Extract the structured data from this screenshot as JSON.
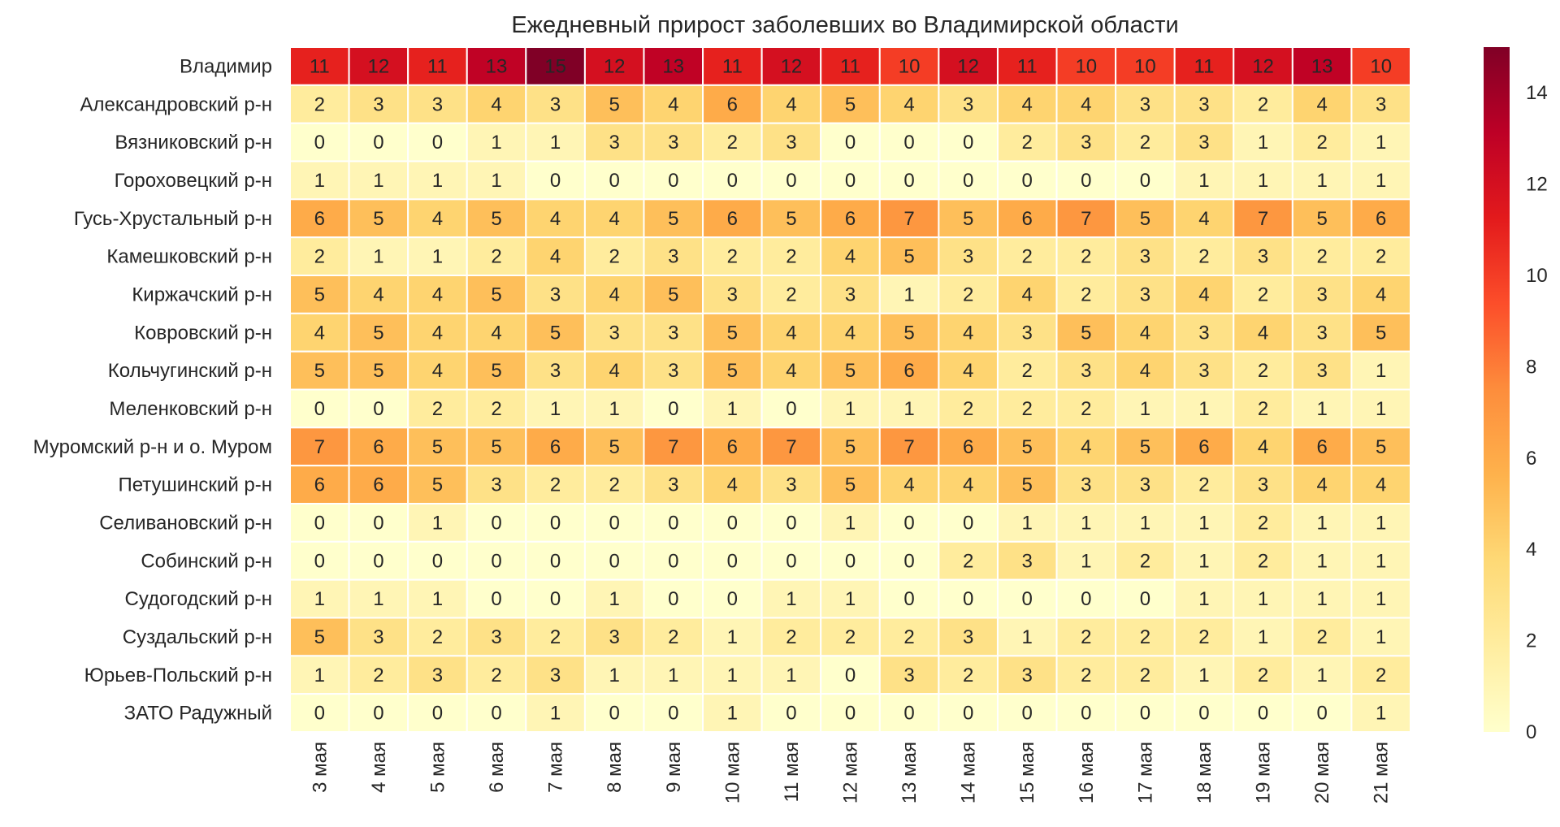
{
  "chart_data": {
    "type": "heatmap",
    "title": "Ежедневный прирост заболевших во Владимирской области",
    "columns": [
      "3 мая",
      "4 мая",
      "5 мая",
      "6 мая",
      "7 мая",
      "8 мая",
      "9 мая",
      "10 мая",
      "11 мая",
      "12 мая",
      "13 мая",
      "14 мая",
      "15 мая",
      "16 мая",
      "17 мая",
      "18 мая",
      "19 мая",
      "20 мая",
      "21 мая"
    ],
    "rows": [
      "Владимир",
      "Александровский р-н",
      "Вязниковский р-н",
      "Гороховецкий р-н",
      "Гусь-Хрустальный р-н",
      "Камешковский р-н",
      "Киржачский р-н",
      "Ковровский р-н",
      "Кольчугинский р-н",
      "Меленковский р-н",
      "Муромский р-н и о. Муром",
      "Петушинский р-н",
      "Селивановский р-н",
      "Собинский р-н",
      "Судогодский р-н",
      "Суздальский р-н",
      "Юрьев-Польский р-н",
      "ЗАТО Радужный"
    ],
    "values": [
      [
        11,
        12,
        11,
        13,
        15,
        12,
        13,
        11,
        12,
        11,
        10,
        12,
        11,
        10,
        10,
        11,
        12,
        13,
        10
      ],
      [
        2,
        3,
        3,
        4,
        3,
        5,
        4,
        6,
        4,
        5,
        4,
        3,
        4,
        4,
        3,
        3,
        2,
        4,
        3
      ],
      [
        0,
        0,
        0,
        1,
        1,
        3,
        3,
        2,
        3,
        0,
        0,
        0,
        2,
        3,
        2,
        3,
        1,
        2,
        1
      ],
      [
        1,
        1,
        1,
        1,
        0,
        0,
        0,
        0,
        0,
        0,
        0,
        0,
        0,
        0,
        0,
        1,
        1,
        1,
        1
      ],
      [
        6,
        5,
        4,
        5,
        4,
        4,
        5,
        6,
        5,
        6,
        7,
        5,
        6,
        7,
        5,
        4,
        7,
        5,
        6
      ],
      [
        2,
        1,
        1,
        2,
        4,
        2,
        3,
        2,
        2,
        4,
        5,
        3,
        2,
        2,
        3,
        2,
        3,
        2,
        2
      ],
      [
        5,
        4,
        4,
        5,
        3,
        4,
        5,
        3,
        2,
        3,
        1,
        2,
        4,
        2,
        3,
        4,
        2,
        3,
        4
      ],
      [
        4,
        5,
        4,
        4,
        5,
        3,
        3,
        5,
        4,
        4,
        5,
        4,
        3,
        5,
        4,
        3,
        4,
        3,
        5
      ],
      [
        5,
        5,
        4,
        5,
        3,
        4,
        3,
        5,
        4,
        5,
        6,
        4,
        2,
        3,
        4,
        3,
        2,
        3,
        1
      ],
      [
        0,
        0,
        2,
        2,
        1,
        1,
        0,
        1,
        0,
        1,
        1,
        2,
        2,
        2,
        1,
        1,
        2,
        1,
        1
      ],
      [
        7,
        6,
        5,
        5,
        6,
        5,
        7,
        6,
        7,
        5,
        7,
        6,
        5,
        4,
        5,
        6,
        4,
        6,
        5
      ],
      [
        6,
        6,
        5,
        3,
        2,
        2,
        3,
        4,
        3,
        5,
        4,
        4,
        5,
        3,
        3,
        2,
        3,
        4,
        4
      ],
      [
        0,
        0,
        1,
        0,
        0,
        0,
        0,
        0,
        0,
        1,
        0,
        0,
        1,
        1,
        1,
        1,
        2,
        1,
        1
      ],
      [
        0,
        0,
        0,
        0,
        0,
        0,
        0,
        0,
        0,
        0,
        0,
        2,
        3,
        1,
        2,
        1,
        2,
        1,
        1
      ],
      [
        1,
        1,
        1,
        0,
        0,
        1,
        0,
        0,
        1,
        1,
        0,
        0,
        0,
        0,
        0,
        1,
        1,
        1,
        1
      ],
      [
        5,
        3,
        2,
        3,
        2,
        3,
        2,
        1,
        2,
        2,
        2,
        3,
        1,
        2,
        2,
        2,
        1,
        2,
        1
      ],
      [
        1,
        2,
        3,
        2,
        3,
        1,
        1,
        1,
        1,
        0,
        3,
        2,
        3,
        2,
        2,
        1,
        2,
        1,
        2
      ],
      [
        0,
        0,
        0,
        0,
        1,
        0,
        0,
        1,
        0,
        0,
        0,
        0,
        0,
        0,
        0,
        0,
        0,
        0,
        1
      ]
    ],
    "colormap": "YlOrRd",
    "vmin": 0,
    "vmax": 15,
    "colorbar_ticks": [
      0,
      2,
      4,
      6,
      8,
      10,
      12,
      14
    ],
    "grid_lines_color": "#ffffff"
  }
}
